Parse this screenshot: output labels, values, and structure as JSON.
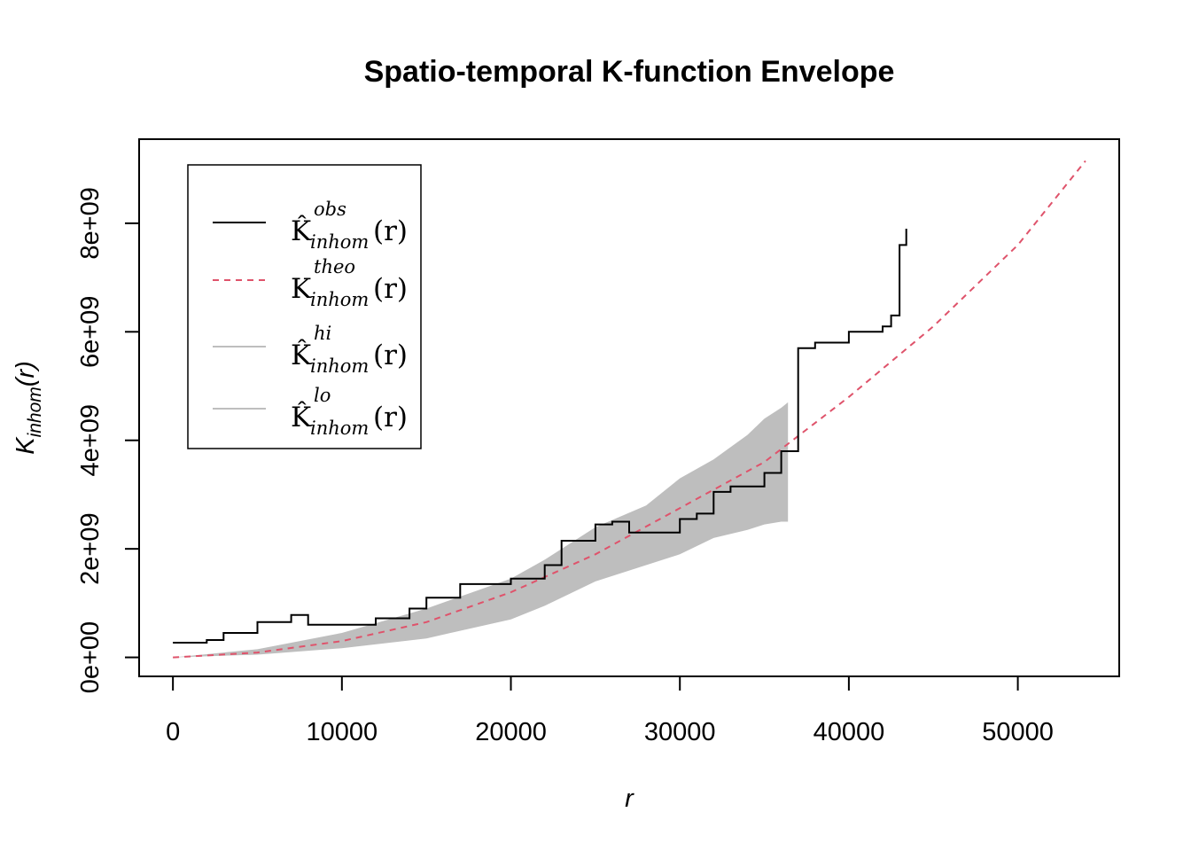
{
  "chart_data": {
    "type": "line",
    "title": "Spatio-temporal K-function Envelope",
    "xlabel": "r",
    "ylabel": {
      "main": "K",
      "subscript": "inhom",
      "arg": "(r)"
    },
    "xlim": [
      -2000,
      56000
    ],
    "ylim": [
      -350000000,
      9550000000
    ],
    "x_ticks": [
      0,
      10000,
      20000,
      30000,
      40000,
      50000
    ],
    "x_tick_labels": [
      "0",
      "10000",
      "20000",
      "30000",
      "40000",
      "50000"
    ],
    "y_ticks": [
      0,
      2000000000,
      4000000000,
      6000000000,
      8000000000
    ],
    "y_tick_labels": [
      "0e+00",
      "2e+09",
      "4e+09",
      "6e+09",
      "8e+09"
    ],
    "grid": false,
    "legend_position": "top-left",
    "legend": [
      {
        "symbol": "K̂",
        "sup": "obs",
        "sub": "inhom",
        "arg": "(r)",
        "style": "solid",
        "color": "#000000"
      },
      {
        "symbol": "K",
        "sup": "theo",
        "sub": "inhom",
        "arg": "(r)",
        "style": "dashed",
        "color": "#DF536B"
      },
      {
        "symbol": "K̂",
        "sup": "hi",
        "sub": "inhom",
        "arg": "(r)",
        "style": "solid",
        "color": "#BEBEBE"
      },
      {
        "symbol": "K̂",
        "sup": "lo",
        "sub": "inhom",
        "arg": "(r)",
        "style": "solid",
        "color": "#BEBEBE"
      }
    ],
    "series": [
      {
        "key": "obs",
        "style": "step",
        "color": "#000000",
        "x": [
          0,
          2000,
          3000,
          5000,
          7000,
          8000,
          10000,
          12000,
          14000,
          15000,
          17000,
          20000,
          22000,
          23000,
          25000,
          26000,
          27000,
          29000,
          30000,
          31000,
          32000,
          33000,
          35000,
          36000,
          37000,
          38000,
          40000,
          42000,
          42500,
          43000,
          43400
        ],
        "y": [
          270000000,
          320000000,
          450000000,
          650000000,
          780000000,
          600000000,
          600000000,
          720000000,
          900000000,
          1100000000,
          1350000000,
          1450000000,
          1700000000,
          2150000000,
          2450000000,
          2500000000,
          2300000000,
          2300000000,
          2550000000,
          2650000000,
          3050000000,
          3150000000,
          3400000000,
          3800000000,
          5700000000,
          5800000000,
          6000000000,
          6100000000,
          6300000000,
          7600000000,
          7900000000
        ]
      },
      {
        "key": "theo",
        "style": "dashed",
        "color": "#DF536B",
        "x": [
          0,
          5000,
          10000,
          15000,
          20000,
          25000,
          30000,
          35000,
          40000,
          45000,
          50000,
          54000
        ],
        "y": [
          0,
          90000000,
          300000000,
          650000000,
          1200000000,
          1900000000,
          2750000000,
          3600000000,
          4800000000,
          6100000000,
          7600000000,
          9150000000
        ]
      },
      {
        "key": "hi",
        "style": "band-upper",
        "color": "#BEBEBE",
        "x": [
          0,
          5000,
          10000,
          15000,
          20000,
          22000,
          25000,
          28000,
          30000,
          32000,
          34000,
          35000,
          36000,
          36400
        ],
        "y": [
          0,
          150000000,
          450000000,
          900000000,
          1450000000,
          1800000000,
          2400000000,
          2800000000,
          3300000000,
          3650000000,
          4100000000,
          4400000000,
          4600000000,
          4700000000
        ]
      },
      {
        "key": "lo",
        "style": "band-lower",
        "color": "#BEBEBE",
        "x": [
          0,
          5000,
          10000,
          15000,
          20000,
          22000,
          25000,
          28000,
          30000,
          32000,
          34000,
          35000,
          36000,
          36400
        ],
        "y": [
          0,
          50000000,
          170000000,
          350000000,
          700000000,
          950000000,
          1400000000,
          1700000000,
          1900000000,
          2200000000,
          2350000000,
          2450000000,
          2500000000,
          2500000000
        ]
      }
    ]
  }
}
